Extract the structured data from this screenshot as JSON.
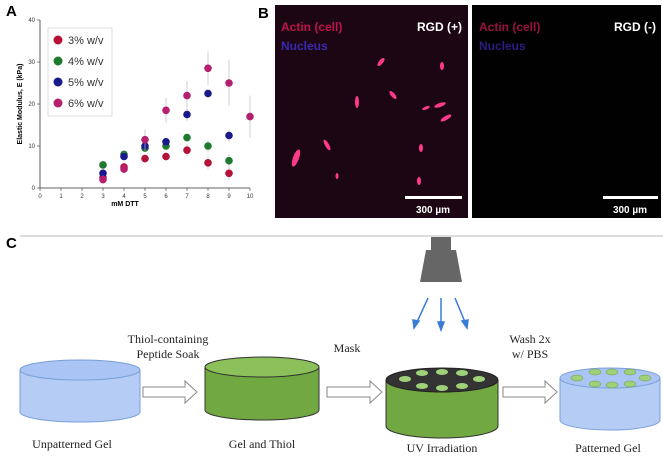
{
  "panel_labels": [
    "A",
    "B",
    "C"
  ],
  "chart_data": {
    "type": "scatter",
    "x_label": "mM DTT",
    "y_label": "Elastic Modulus, E (kPa)",
    "xlim": [
      0,
      10
    ],
    "xticks": [
      0,
      1,
      2,
      3,
      4,
      5,
      6,
      7,
      8,
      9,
      10
    ],
    "ylim": [
      0,
      40
    ],
    "yticks": [
      0,
      10,
      20,
      30,
      40
    ],
    "series": [
      {
        "name": "3% w/v",
        "color": "#b5123a",
        "x": [
          3,
          4,
          5,
          6,
          7,
          8,
          9
        ],
        "values": [
          2.5,
          5,
          7,
          7.5,
          9,
          6,
          3.5
        ],
        "errors": [
          1,
          1,
          1,
          1,
          1.5,
          1.5,
          1.5
        ]
      },
      {
        "name": "4% w/v",
        "color": "#1e7a2e",
        "x": [
          3,
          4,
          5,
          6,
          7,
          8,
          9
        ],
        "values": [
          5.5,
          8,
          9.5,
          10,
          12,
          10,
          6.5
        ],
        "errors": [
          1,
          1,
          1,
          1,
          1,
          1.5,
          1.5
        ]
      },
      {
        "name": "5% w/v",
        "color": "#1a1a8c",
        "x": [
          3,
          4,
          5,
          6,
          7,
          8,
          9
        ],
        "values": [
          3.5,
          7.5,
          10,
          11,
          17.5,
          22.5,
          12.5
        ],
        "errors": [
          1,
          1,
          1,
          1,
          1.5,
          1,
          1.5
        ]
      },
      {
        "name": "6% w/v",
        "color": "#b5206e",
        "x": [
          3,
          4,
          5,
          6,
          7,
          8,
          9,
          10
        ],
        "values": [
          2,
          4.5,
          11.5,
          18.5,
          22,
          28.5,
          25,
          17
        ],
        "errors": [
          1,
          1,
          2.5,
          3,
          3.5,
          4,
          5.5,
          5
        ]
      }
    ]
  },
  "panel_b": {
    "images": [
      {
        "channels": [
          "Actin (cell)",
          "Nucleus"
        ],
        "condition": "RGD (+)",
        "scale_bar": "300 µm"
      },
      {
        "channels": [
          "Actin (cell)",
          "Nucleus"
        ],
        "condition": "RGD (-)",
        "scale_bar": "300 µm"
      }
    ]
  },
  "panel_c": {
    "steps": [
      "Unpatterned Gel",
      "Gel and Thiol",
      "UV Irradiation",
      "Patterned Gel"
    ],
    "transitions": [
      [
        "Thiol-containing",
        "Peptide Soak"
      ],
      [
        "Mask"
      ],
      [
        "Wash 2x",
        "w/ PBS"
      ]
    ]
  }
}
